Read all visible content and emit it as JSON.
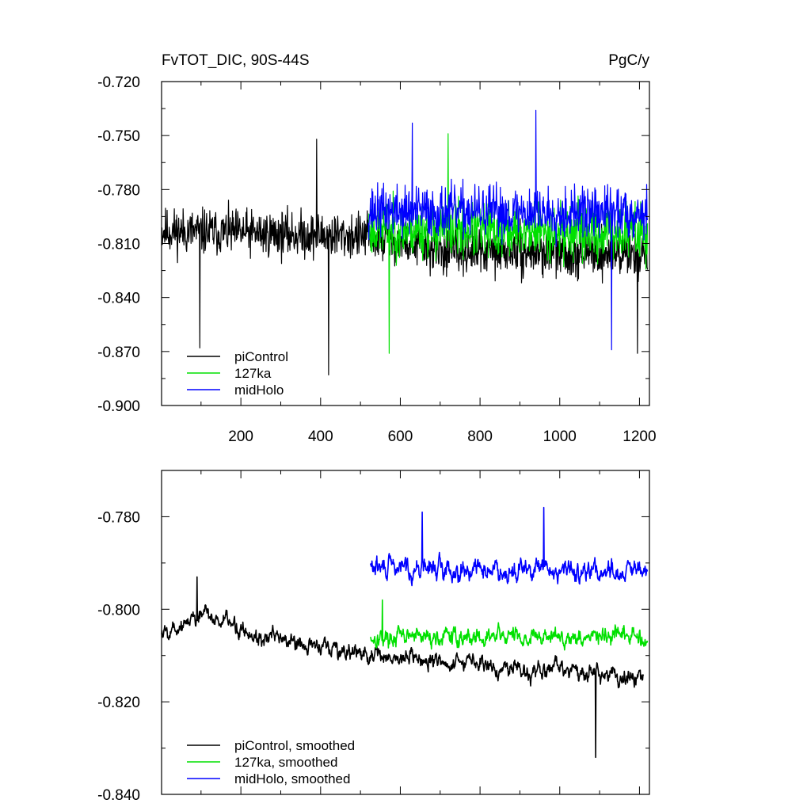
{
  "chart_data": [
    {
      "type": "line",
      "title": "FvTOT_DIC, 90S-44S",
      "units_label": "PgC/y",
      "xlim": [
        1,
        1225
      ],
      "ylim": [
        -0.9,
        -0.72
      ],
      "x_ticks": [
        200,
        400,
        600,
        800,
        1000,
        1200
      ],
      "y_ticks": [
        "-0.720",
        "-0.750",
        "-0.780",
        "-0.810",
        "-0.840",
        "-0.870",
        "-0.900"
      ],
      "grid": false,
      "legend_position": "bottom-left",
      "series": [
        {
          "name": "piControl",
          "color": "#000000",
          "x_range": [
            1,
            1220
          ],
          "noise_seed": 11,
          "segments": [
            [
              1,
              -0.803
            ],
            [
              520,
              -0.806
            ],
            [
              700,
              -0.814
            ],
            [
              1000,
              -0.815
            ],
            [
              1220,
              -0.816
            ]
          ],
          "spread": 0.019,
          "spikes": [
            [
              97,
              -0.868
            ],
            [
              420,
              -0.883
            ],
            [
              390,
              -0.752
            ],
            [
              1195,
              -0.871
            ]
          ]
        },
        {
          "name": "127ka",
          "color": "#00e000",
          "x_range": [
            520,
            1220
          ],
          "noise_seed": 23,
          "segments": [
            [
              520,
              -0.802
            ],
            [
              1220,
              -0.804
            ]
          ],
          "spread": 0.023,
          "spikes": [
            [
              572,
              -0.871
            ],
            [
              720,
              -0.749
            ]
          ]
        },
        {
          "name": "midHolo",
          "color": "#0000ff",
          "x_range": [
            520,
            1220
          ],
          "noise_seed": 37,
          "segments": [
            [
              520,
              -0.792
            ],
            [
              1220,
              -0.793
            ]
          ],
          "spread": 0.021,
          "spikes": [
            [
              940,
              -0.736
            ],
            [
              1130,
              -0.869
            ],
            [
              630,
              -0.743
            ]
          ]
        }
      ]
    },
    {
      "type": "line",
      "xlim": [
        1,
        1225
      ],
      "ylim": [
        -0.84,
        -0.77
      ],
      "y_ticks": [
        "-0.780",
        "-0.800",
        "-0.820",
        "-0.840"
      ],
      "grid": false,
      "legend_position": "bottom-left",
      "series": [
        {
          "name": "piControl, smoothed",
          "color": "#000000",
          "x_range": [
            1,
            1210
          ],
          "noise_seed": 5,
          "segments": [
            [
              1,
              -0.805
            ],
            [
              100,
              -0.801
            ],
            [
              250,
              -0.806
            ],
            [
              520,
              -0.81
            ],
            [
              800,
              -0.812
            ],
            [
              1000,
              -0.813
            ],
            [
              1210,
              -0.815
            ]
          ],
          "spread": 0.0035,
          "spikes": [
            [
              90,
              -0.793
            ],
            [
              1090,
              -0.832
            ]
          ]
        },
        {
          "name": "127ka, smoothed",
          "color": "#00e000",
          "x_range": [
            525,
            1220
          ],
          "noise_seed": 17,
          "segments": [
            [
              525,
              -0.806
            ],
            [
              1220,
              -0.806
            ]
          ],
          "spread": 0.0035,
          "spikes": [
            [
              555,
              -0.798
            ]
          ]
        },
        {
          "name": "midHolo, smoothed",
          "color": "#0000ff",
          "x_range": [
            525,
            1220
          ],
          "noise_seed": 29,
          "segments": [
            [
              525,
              -0.791
            ],
            [
              1220,
              -0.792
            ]
          ],
          "spread": 0.004,
          "spikes": [
            [
              655,
              -0.779
            ],
            [
              960,
              -0.778
            ]
          ]
        }
      ]
    }
  ]
}
